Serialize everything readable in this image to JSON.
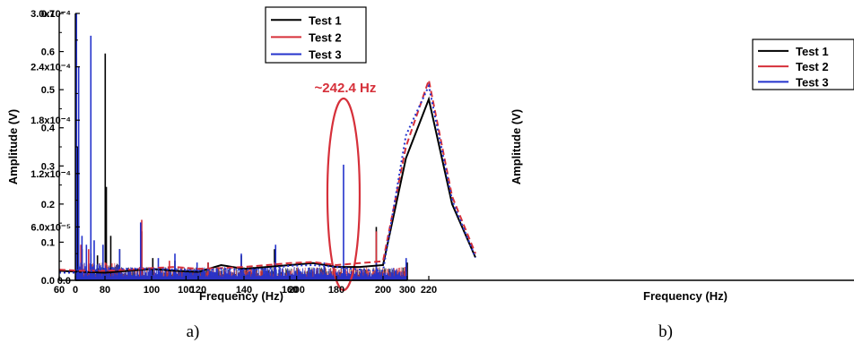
{
  "chart_data": [
    {
      "type": "line",
      "panel_label": "a)",
      "xlabel": "Frequency (Hz)",
      "ylabel": "Amplitude (V)",
      "xlim": [
        0,
        300
      ],
      "ylim": [
        0,
        0.0003
      ],
      "x_ticks": [
        0,
        100,
        200,
        300
      ],
      "x_tick_labels": [
        "0",
        "100",
        "200",
        "300"
      ],
      "y_ticks": [
        0,
        6e-05,
        0.00012,
        0.00018,
        0.00024,
        0.0003
      ],
      "y_tick_labels": [
        "0.0",
        "6.0x10⁻⁵",
        "1.2x10⁻⁴",
        "1.8x10⁻⁴",
        "2.4x10⁻⁴",
        "3.0x10⁻⁴"
      ],
      "grid": false,
      "legend_position": "top-right",
      "annotation": {
        "text": "~242.4 Hz",
        "x": 242.4,
        "color": "#d6303a"
      },
      "series": [
        {
          "name": "Test 1",
          "color": "#000000",
          "peaks": [
            [
              0.5,
              0.00028
            ],
            [
              2,
              0.00015
            ],
            [
              6,
              3.5e-05
            ],
            [
              14,
              3e-05
            ],
            [
              20,
              2.8e-05
            ],
            [
              27,
              0.000255
            ],
            [
              28,
              0.000105
            ],
            [
              32,
              5e-05
            ],
            [
              40,
              3.5e-05
            ],
            [
              60,
              5.5e-05
            ],
            [
              70,
              2.5e-05
            ],
            [
              90,
              2.2e-05
            ],
            [
              120,
              2e-05
            ],
            [
              150,
              2.8e-05
            ],
            [
              180,
              3.5e-05
            ],
            [
              242.4,
              1.5e-05
            ],
            [
              272,
              6e-05
            ],
            [
              300,
              2e-05
            ]
          ]
        },
        {
          "name": "Test 2",
          "color": "#d6303a",
          "peaks": [
            [
              1,
              0.00025
            ],
            [
              5,
              4e-05
            ],
            [
              12,
              3.5e-05
            ],
            [
              27,
              2e-05
            ],
            [
              60,
              6.8e-05
            ],
            [
              85,
              2.2e-05
            ],
            [
              120,
              2e-05
            ],
            [
              150,
              2e-05
            ],
            [
              180,
              2e-05
            ],
            [
              242.4,
              1e-05
            ],
            [
              272,
              5.5e-05
            ],
            [
              298,
              1.5e-05
            ]
          ]
        },
        {
          "name": "Test 3",
          "color": "#2433cc",
          "peaks": [
            [
              1,
              0.0003
            ],
            [
              3,
              0.00024
            ],
            [
              6,
              5e-05
            ],
            [
              10,
              4e-05
            ],
            [
              14,
              0.000275
            ],
            [
              17,
              4.5e-05
            ],
            [
              25,
              4e-05
            ],
            [
              40,
              3.5e-05
            ],
            [
              59,
              6.5e-05
            ],
            [
              75,
              2.5e-05
            ],
            [
              90,
              3e-05
            ],
            [
              110,
              2e-05
            ],
            [
              150,
              3e-05
            ],
            [
              181,
              4e-05
            ],
            [
              225,
              2e-05
            ],
            [
              242.4,
              0.00013
            ],
            [
              250,
              1e-05
            ],
            [
              272,
              2e-05
            ],
            [
              299,
              2.5e-05
            ]
          ]
        }
      ]
    },
    {
      "type": "line",
      "panel_label": "b)",
      "xlabel": "Frequency (Hz)",
      "ylabel": "Amplitude (V)",
      "xlim": [
        60,
        240
      ],
      "ylim": [
        0,
        0.7
      ],
      "x_ticks": [
        60,
        80,
        100,
        120,
        140,
        160,
        180,
        200,
        220
      ],
      "x_tick_labels": [
        "60",
        "80",
        "100",
        "120",
        "140",
        "160",
        "180",
        "200",
        "220"
      ],
      "y_ticks": [
        0,
        0.1,
        0.2,
        0.3,
        0.4,
        0.5,
        0.6,
        0.7
      ],
      "y_tick_labels": [
        "0.0",
        "0.1",
        "0.2",
        "0.3",
        "0.4",
        "0.5",
        "0.6",
        "0.7"
      ],
      "grid": false,
      "legend_position": "top-right",
      "series": [
        {
          "name": "Test 1",
          "color": "#000000",
          "dash": "solid",
          "x": [
            60,
            70,
            80,
            90,
            100,
            110,
            120,
            130,
            140,
            150,
            160,
            170,
            180,
            190,
            200,
            210,
            220,
            230,
            240
          ],
          "y": [
            0.025,
            0.022,
            0.02,
            0.025,
            0.03,
            0.025,
            0.022,
            0.04,
            0.03,
            0.035,
            0.04,
            0.045,
            0.035,
            0.035,
            0.04,
            0.32,
            0.475,
            0.2,
            0.06
          ]
        },
        {
          "name": "Test 2",
          "color": "#d6303a",
          "dash": "dashed",
          "x": [
            60,
            70,
            80,
            90,
            100,
            110,
            120,
            130,
            140,
            150,
            160,
            170,
            180,
            190,
            200,
            210,
            220,
            230,
            240
          ],
          "y": [
            0.028,
            0.025,
            0.025,
            0.028,
            0.032,
            0.035,
            0.03,
            0.032,
            0.035,
            0.04,
            0.045,
            0.048,
            0.04,
            0.045,
            0.05,
            0.35,
            0.525,
            0.22,
            0.07
          ]
        },
        {
          "name": "Test 3",
          "color": "#2433cc",
          "dash": "dotted",
          "x": [
            60,
            70,
            80,
            90,
            100,
            110,
            120,
            130,
            140,
            150,
            160,
            170,
            180,
            190,
            200,
            210,
            220,
            230,
            240
          ],
          "y": [
            0.02,
            0.02,
            0.03,
            0.03,
            0.03,
            0.028,
            0.025,
            0.03,
            0.028,
            0.03,
            0.038,
            0.04,
            0.035,
            0.028,
            0.025,
            0.38,
            0.51,
            0.21,
            0.06
          ]
        }
      ]
    }
  ]
}
